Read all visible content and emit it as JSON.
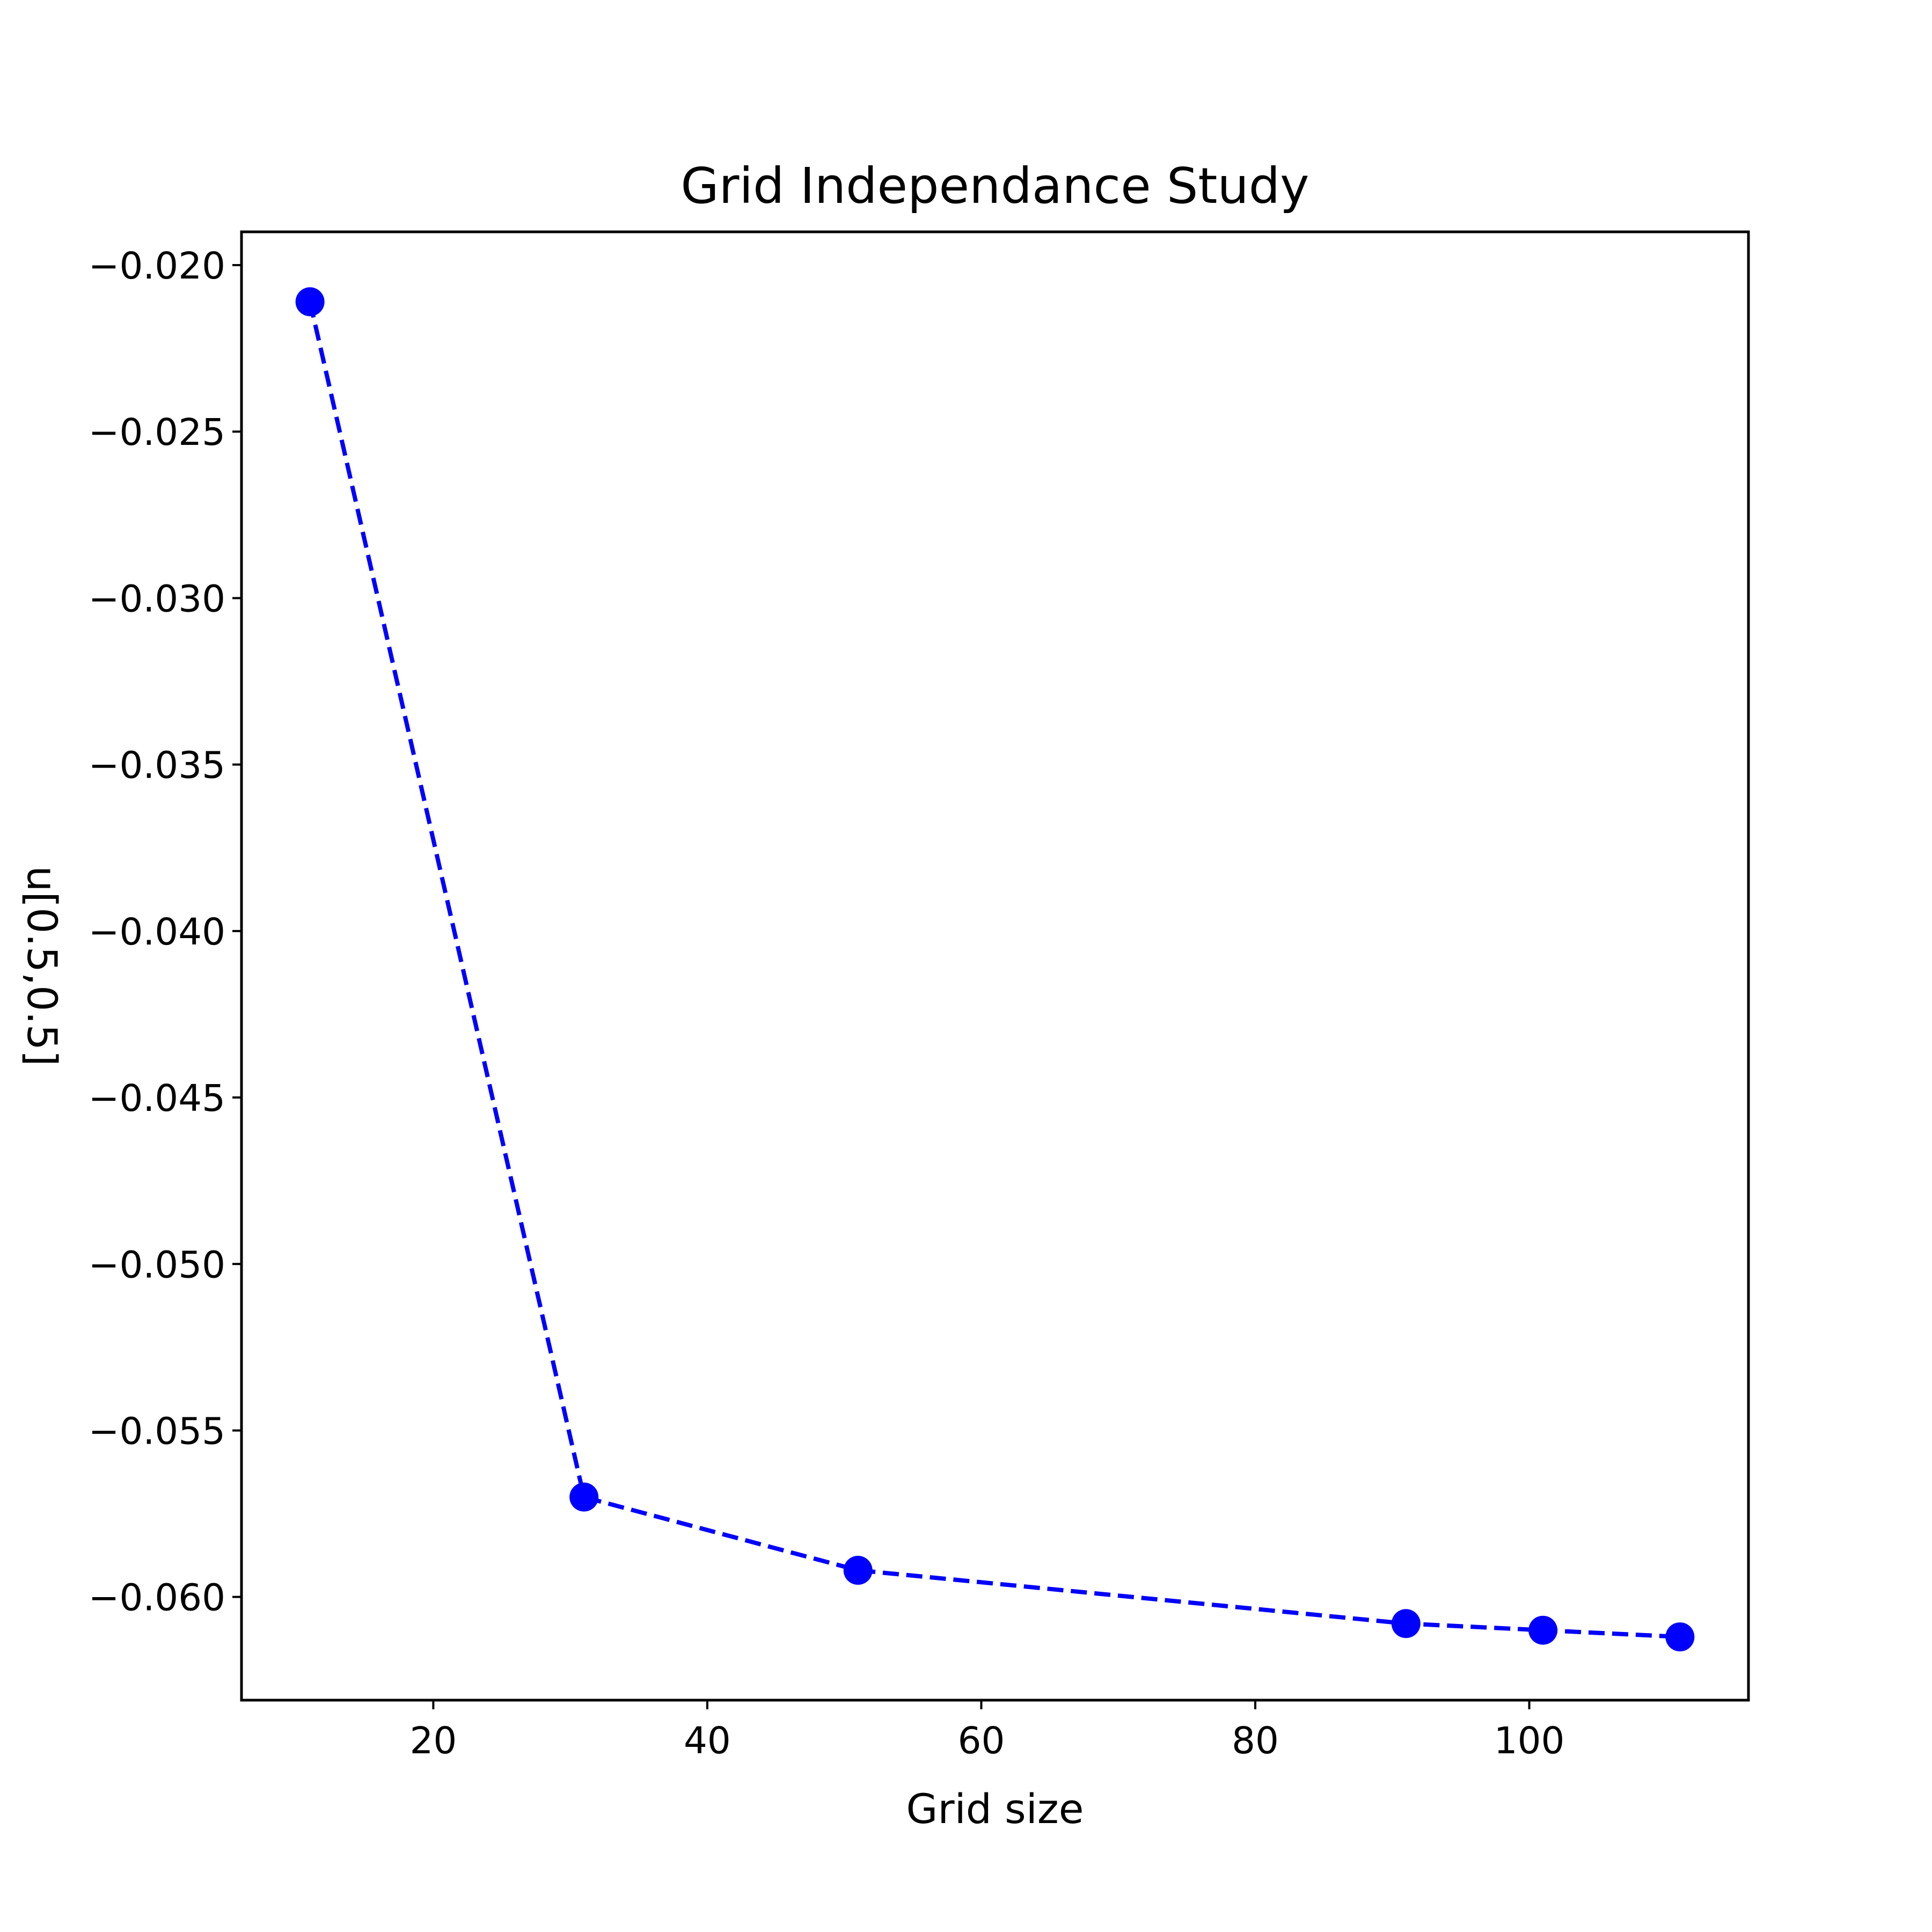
{
  "chart_data": {
    "type": "line",
    "title": "Grid Independance Study",
    "xlabel": "Grid size",
    "ylabel": "u[0.5,0.5]",
    "x": [
      11,
      31,
      51,
      91,
      101,
      111
    ],
    "series": [
      {
        "values": [
          -0.0211,
          -0.057,
          -0.0592,
          -0.0608,
          -0.061,
          -0.0612
        ],
        "color": "#0000ff",
        "line_style": "dashed",
        "marker": "circle"
      }
    ],
    "xlim": [
      6,
      116
    ],
    "ylim": [
      -0.0631,
      -0.019
    ],
    "xticks": [
      20,
      40,
      60,
      80,
      100
    ],
    "xtick_labels": [
      "20",
      "40",
      "60",
      "80",
      "100"
    ],
    "yticks": [
      -0.02,
      -0.025,
      -0.03,
      -0.035,
      -0.04,
      -0.045,
      -0.05,
      -0.055,
      -0.06
    ],
    "ytick_labels": [
      "−0.020",
      "−0.025",
      "−0.030",
      "−0.035",
      "−0.040",
      "−0.045",
      "−0.050",
      "−0.055",
      "−0.060"
    ],
    "grid": false,
    "legend": false
  }
}
